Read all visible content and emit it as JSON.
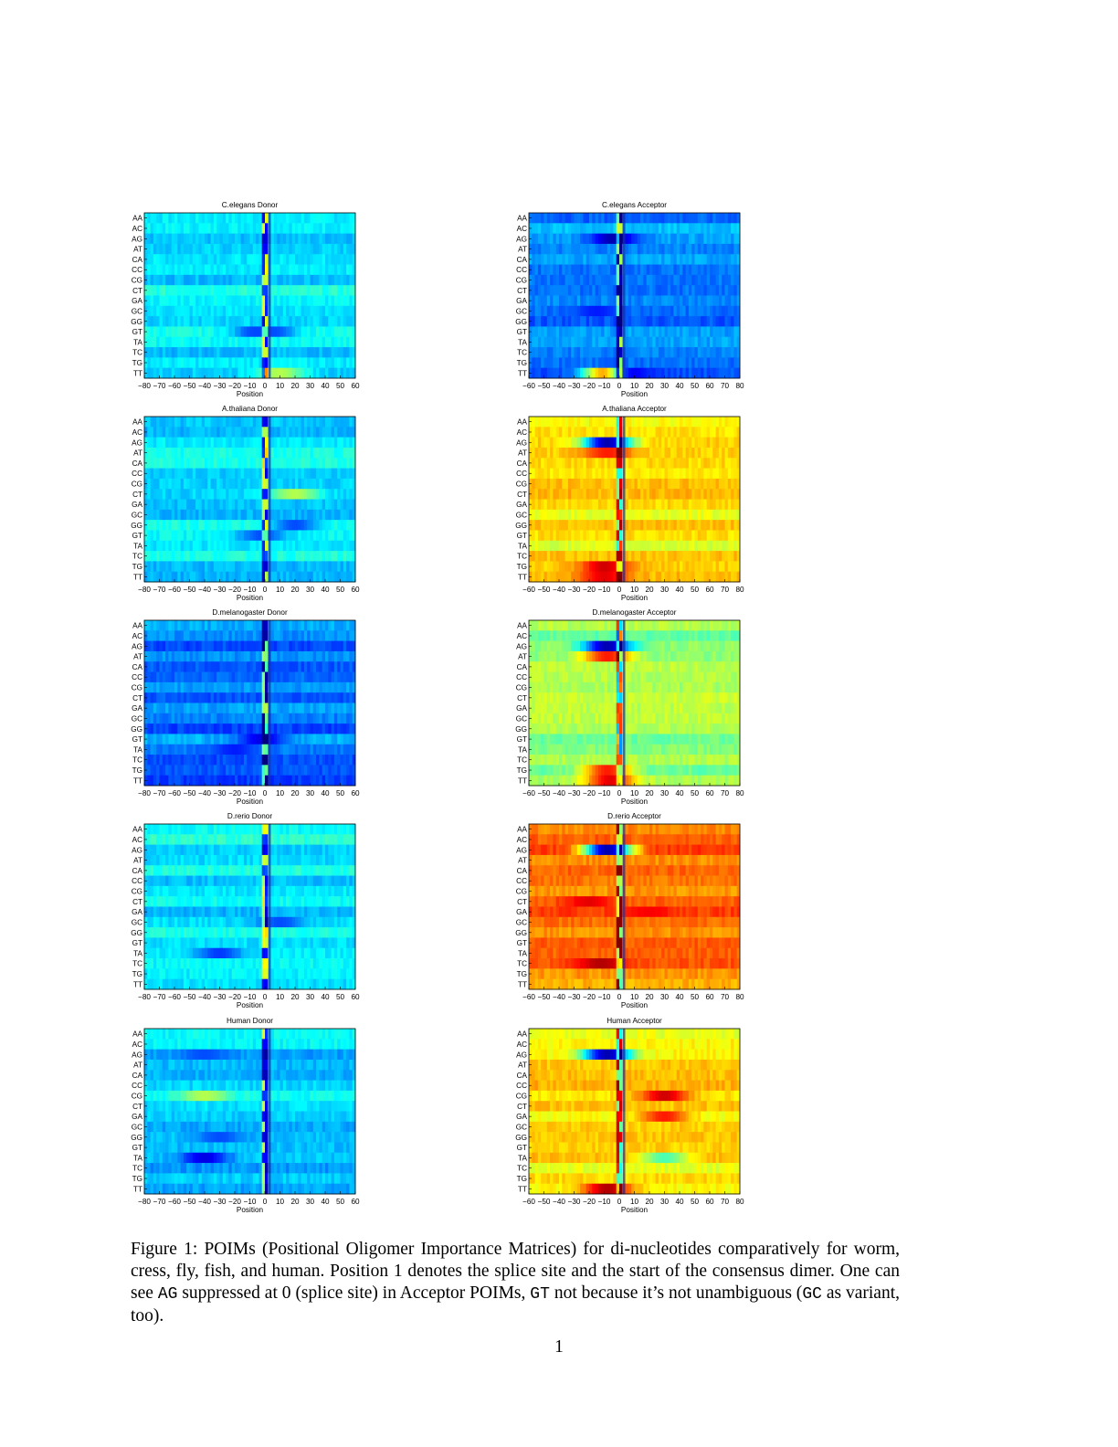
{
  "figure": {
    "row_labels": [
      "AA",
      "AC",
      "AG",
      "AT",
      "CA",
      "CC",
      "CG",
      "CT",
      "GA",
      "GC",
      "GG",
      "GT",
      "TA",
      "TC",
      "TG",
      "TT"
    ],
    "xlabel": "Position",
    "donor_ticks": [
      "−80",
      "−70",
      "−60",
      "−50",
      "−40",
      "−30",
      "−20",
      "−10",
      "0",
      "10",
      "20",
      "30",
      "40",
      "50",
      "60"
    ],
    "acceptor_ticks": [
      "−60",
      "−50",
      "−40",
      "−30",
      "−20",
      "−10",
      "0",
      "10",
      "20",
      "30",
      "40",
      "50",
      "60",
      "70",
      "80"
    ]
  },
  "chart_data": [
    {
      "type": "heatmap",
      "title": "C.elegans Donor",
      "xlabel": "Position",
      "xlim": [
        -80,
        60
      ],
      "base": 0.36,
      "highlight": [
        [
          "GT",
          -4,
          0.18
        ],
        [
          "GT",
          4,
          0.2
        ],
        [
          "TT",
          10,
          0.55
        ]
      ]
    },
    {
      "type": "heatmap",
      "title": "C.elegans Acceptor",
      "xlabel": "Position",
      "xlim": [
        -60,
        80
      ],
      "base": 0.26,
      "highlight": [
        [
          "AG",
          -4,
          0.05
        ],
        [
          "TT",
          -6,
          0.9
        ],
        [
          "GC",
          -15,
          0.15
        ],
        [
          "TT",
          10,
          0.12
        ]
      ]
    },
    {
      "type": "heatmap",
      "title": "A.thaliana Donor",
      "xlabel": "Position",
      "xlim": [
        -80,
        60
      ],
      "base": 0.36,
      "highlight": [
        [
          "GG",
          20,
          0.2
        ],
        [
          "CT",
          20,
          0.55
        ],
        [
          "GT",
          -2,
          0.2
        ]
      ]
    },
    {
      "type": "heatmap",
      "title": "A.thaliana Acceptor",
      "xlabel": "Position",
      "xlim": [
        -60,
        80
      ],
      "base": 0.64,
      "highlight": [
        [
          "AG",
          -8,
          0.05
        ],
        [
          "AT",
          -8,
          0.85
        ],
        [
          "TG",
          -10,
          0.92
        ],
        [
          "TT",
          -10,
          0.9
        ]
      ]
    },
    {
      "type": "heatmap",
      "title": "D.melanogaster Donor",
      "xlabel": "Position",
      "xlim": [
        -80,
        60
      ],
      "base": 0.24,
      "highlight": [
        [
          "GT",
          -2,
          0.1
        ],
        [
          "TA",
          -20,
          0.15
        ]
      ]
    },
    {
      "type": "heatmap",
      "title": "D.melanogaster Acceptor",
      "xlabel": "Position",
      "xlim": [
        -60,
        80
      ],
      "base": 0.52,
      "highlight": [
        [
          "AG",
          -8,
          0.05
        ],
        [
          "AT",
          -8,
          0.85
        ],
        [
          "TT",
          -6,
          0.9
        ],
        [
          "TG",
          -8,
          0.85
        ]
      ]
    },
    {
      "type": "heatmap",
      "title": "D.rerio Donor",
      "xlabel": "Position",
      "xlim": [
        -80,
        60
      ],
      "base": 0.36,
      "highlight": [
        [
          "TA",
          -30,
          0.18
        ],
        [
          "GC",
          10,
          0.2
        ]
      ]
    },
    {
      "type": "heatmap",
      "title": "D.rerio Acceptor",
      "xlabel": "Position",
      "xlim": [
        -60,
        80
      ],
      "base": 0.76,
      "highlight": [
        [
          "AG",
          -8,
          0.05
        ],
        [
          "CT",
          -20,
          0.9
        ],
        [
          "TC",
          -12,
          0.95
        ],
        [
          "GA",
          20,
          0.88
        ]
      ]
    },
    {
      "type": "heatmap",
      "title": "Human Donor",
      "xlabel": "Position",
      "xlim": [
        -80,
        60
      ],
      "base": 0.33,
      "highlight": [
        [
          "TA",
          -40,
          0.1
        ],
        [
          "AG",
          -40,
          0.2
        ],
        [
          "CG",
          -40,
          0.55
        ],
        [
          "GG",
          -30,
          0.2
        ]
      ]
    },
    {
      "type": "heatmap",
      "title": "Human Acceptor",
      "xlabel": "Position",
      "xlim": [
        -60,
        80
      ],
      "base": 0.66,
      "highlight": [
        [
          "AG",
          -8,
          0.05
        ],
        [
          "TT",
          -8,
          0.95
        ],
        [
          "CG",
          30,
          0.92
        ],
        [
          "GA",
          30,
          0.85
        ],
        [
          "TA",
          30,
          0.45
        ]
      ]
    }
  ],
  "caption": {
    "prefix": "Figure 1: POIMs (Positional Oligomer Importance Matrices) for di-nucleotides comparatively for worm, cress, fly, fish, and human. Position 1 denotes the splice site and the start of the consensus dimer. One can see ",
    "code1": "AG",
    "mid1": " suppressed at 0 (splice site) in Acceptor POIMs, ",
    "code2": "GT",
    "mid2": " not because it’s not unambiguous (",
    "code3": "GC",
    "suffix": " as variant, too)."
  },
  "page_number": "1"
}
